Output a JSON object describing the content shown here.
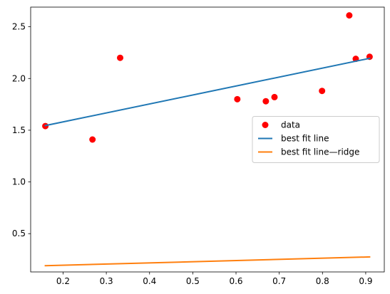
{
  "chart_data": {
    "type": "scatter",
    "title": "",
    "xlabel": "",
    "ylabel": "",
    "xlim": [
      0.125,
      0.943
    ],
    "ylim": [
      0.13,
      2.69
    ],
    "x_ticks": [
      0.2,
      0.3,
      0.4,
      0.5,
      0.6,
      0.7,
      0.8,
      0.9
    ],
    "y_ticks": [
      0.5,
      1.0,
      1.5,
      2.0,
      2.5
    ],
    "grid": false,
    "legend_position": "center-right",
    "series": [
      {
        "name": "data",
        "kind": "scatter",
        "color": "#ff0000",
        "x": [
          0.159,
          0.268,
          0.332,
          0.603,
          0.669,
          0.689,
          0.799,
          0.862,
          0.877,
          0.909
        ],
        "y": [
          1.54,
          1.41,
          2.2,
          1.8,
          1.78,
          1.82,
          1.88,
          2.61,
          2.19,
          2.21
        ]
      },
      {
        "name": "best fit line",
        "kind": "line",
        "color": "#1f77b4",
        "x": [
          0.159,
          0.909
        ],
        "y": [
          1.545,
          2.195
        ]
      },
      {
        "name": "best fit line—ridge",
        "kind": "line",
        "color": "#ff7f0e",
        "x": [
          0.159,
          0.909
        ],
        "y": [
          0.19,
          0.275
        ]
      }
    ]
  }
}
